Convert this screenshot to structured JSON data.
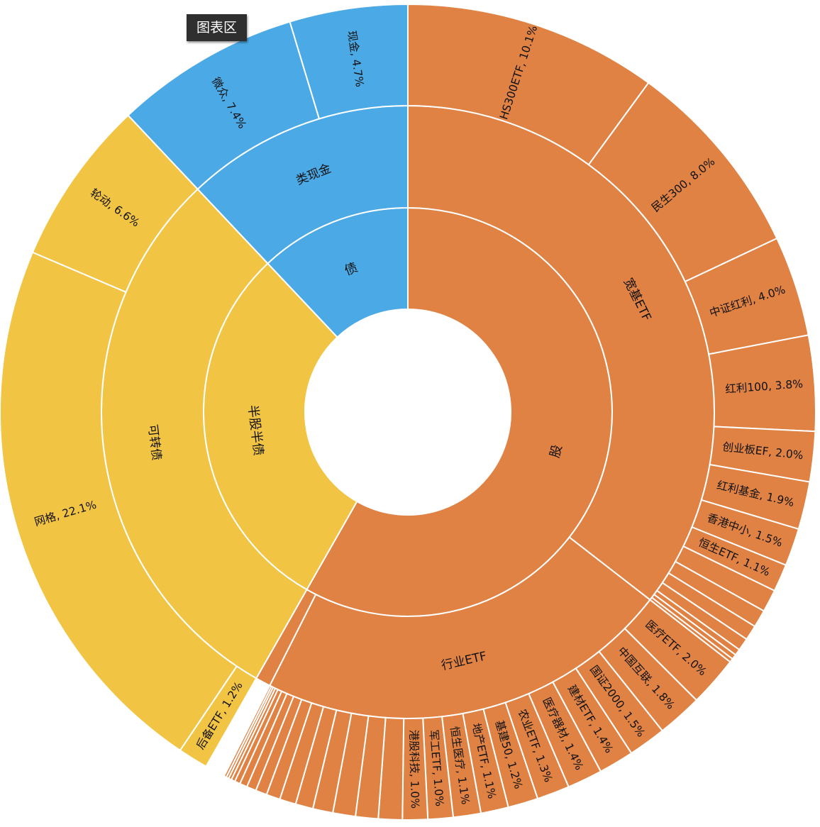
{
  "chart_area_tag": "图表区",
  "chart_data": {
    "type": "sunburst",
    "colors": {
      "股": "#df8244",
      "债": "#4baae6",
      "半股半债": "#f2c443",
      "separator": "#ffffff"
    },
    "nodes": [
      {
        "name": "股",
        "children": [
          {
            "name": "宽基ETF",
            "children": [
              {
                "name": "HS300ETF",
                "label": "HS300ETF, 10.1%",
                "value": 10.1
              },
              {
                "name": "民生300",
                "label": "民生300, 8.0%",
                "value": 8.0
              },
              {
                "name": "中证红利",
                "label": "中证红利, 4.0%",
                "value": 4.0
              },
              {
                "name": "红利100",
                "label": "红利100, 3.8%",
                "value": 3.8
              },
              {
                "name": "创业板EF",
                "label": "创业板EF, 2.0%",
                "value": 2.0
              },
              {
                "name": "红利基金",
                "label": "红利基金, 1.9%",
                "value": 1.9
              },
              {
                "name": "香港中小",
                "label": "香港中小, 1.5%",
                "value": 1.5
              },
              {
                "name": "恒生ETF",
                "label": "恒生ETF, 1.1%",
                "value": 1.1
              },
              {
                "name": "",
                "label": "",
                "value": 0.9
              },
              {
                "name": "",
                "label": "",
                "value": 0.7
              },
              {
                "name": "",
                "label": "",
                "value": 0.6
              },
              {
                "name": "",
                "label": "",
                "value": 0.5
              },
              {
                "name": "",
                "label": "",
                "value": 0.25
              },
              {
                "name": "",
                "label": "",
                "value": 0.2
              },
              {
                "name": "",
                "label": "",
                "value": 0.15
              }
            ]
          },
          {
            "name": "行业ETF",
            "children": [
              {
                "name": "医疗ETF",
                "label": "医疗ETF, 2.0%",
                "value": 2.0
              },
              {
                "name": "中国互联",
                "label": "中国互联, 1.8%",
                "value": 1.8
              },
              {
                "name": "国证2000",
                "label": "国证2000, 1.5%",
                "value": 1.5
              },
              {
                "name": "建材ETF",
                "label": "建材ETF, 1.4%",
                "value": 1.4
              },
              {
                "name": "医疗器材",
                "label": "医疗器材, 1.4%",
                "value": 1.4
              },
              {
                "name": "农业ETF",
                "label": "农业ETF, 1.3%",
                "value": 1.3
              },
              {
                "name": "基建50",
                "label": "基建50, 1.2%",
                "value": 1.2
              },
              {
                "name": "地产ETF",
                "label": "地产ETF, 1.1%",
                "value": 1.1
              },
              {
                "name": "恒生医疗",
                "label": "恒生医疗, 1.1%",
                "value": 1.1
              },
              {
                "name": "军工ETF",
                "label": "军工ETF, 1.0%",
                "value": 1.0
              },
              {
                "name": "港股科技",
                "label": "港股科技, 1.0%",
                "value": 1.0
              },
              {
                "name": "",
                "label": "",
                "value": 0.95
              },
              {
                "name": "",
                "label": "",
                "value": 0.9
              },
              {
                "name": "",
                "label": "",
                "value": 0.9
              },
              {
                "name": "",
                "label": "",
                "value": 0.8
              },
              {
                "name": "",
                "label": "",
                "value": 0.7
              },
              {
                "name": "",
                "label": "",
                "value": 0.65
              },
              {
                "name": "",
                "label": "",
                "value": 0.55
              },
              {
                "name": "",
                "label": "",
                "value": 0.45
              },
              {
                "name": "",
                "label": "",
                "value": 0.38
              },
              {
                "name": "",
                "label": "",
                "value": 0.3
              },
              {
                "name": "",
                "label": "",
                "value": 0.22
              },
              {
                "name": "",
                "label": "",
                "value": 0.15
              },
              {
                "name": "",
                "label": "",
                "value": 0.12
              },
              {
                "name": "",
                "label": "",
                "value": 0.1
              },
              {
                "name": "",
                "label": "",
                "value": 0.1
              }
            ]
          },
          {
            "name": "",
            "value": 0.8
          }
        ]
      },
      {
        "name": "半股半债",
        "children": [
          {
            "name": "可转债",
            "children": [
              {
                "name": "后备ETF",
                "label": "后备ETF, 1.2%",
                "value": 1.2
              },
              {
                "name": "网格",
                "label": "网格, 22.1%",
                "value": 22.1
              },
              {
                "name": "轮动",
                "label": "轮动, 6.6%",
                "value": 6.6
              }
            ]
          }
        ]
      },
      {
        "name": "债",
        "children": [
          {
            "name": "类现金",
            "children": [
              {
                "name": "微众",
                "label": "微众, 7.4%",
                "value": 7.4
              },
              {
                "name": "现金",
                "label": "现金, 4.7%",
                "value": 4.7
              }
            ]
          }
        ]
      }
    ]
  }
}
